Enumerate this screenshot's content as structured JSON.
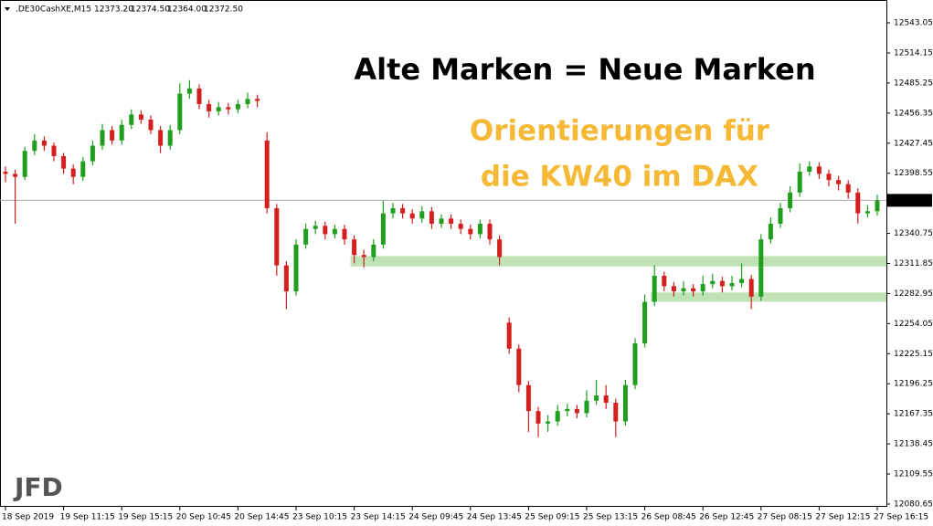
{
  "chart_data": {
    "type": "candlestick",
    "symbol": ".DE30CashXE,M15",
    "header_ohlc": [
      "12373.20",
      "12374.50",
      "12364.00",
      "12372.50"
    ],
    "annotations": [
      "Alte Marken = Neue Marken",
      "Orientierungen für",
      "die KW40 im DAX"
    ],
    "logo": "JFD",
    "bull_color": "#1f9e1f",
    "bear_color": "#d41f1f",
    "zone_color": "#bfe3b4",
    "ylim": [
      12078,
      12565
    ],
    "yticks": [
      {
        "value": 12543.05,
        "label": "12543.05"
      },
      {
        "value": 12514.15,
        "label": "12514.15"
      },
      {
        "value": 12485.25,
        "label": "12485.25"
      },
      {
        "value": 12456.35,
        "label": "12456.35"
      },
      {
        "value": 12427.45,
        "label": "12427.45"
      },
      {
        "value": 12398.55,
        "label": "12398.55"
      },
      {
        "value": 12340.75,
        "label": "12340.75"
      },
      {
        "value": 12311.85,
        "label": "12311.85"
      },
      {
        "value": 12282.95,
        "label": "12282.95"
      },
      {
        "value": 12254.05,
        "label": "12254.05"
      },
      {
        "value": 12225.15,
        "label": "12225.15"
      },
      {
        "value": 12196.25,
        "label": "12196.25"
      },
      {
        "value": 12167.35,
        "label": "12167.35"
      },
      {
        "value": 12138.45,
        "label": "12138.45"
      },
      {
        "value": 12109.55,
        "label": "12109.55"
      },
      {
        "value": 12080.65,
        "label": "12080.65"
      }
    ],
    "current_price": {
      "value": 12372.5,
      "label": "12372.50"
    },
    "zones": [
      {
        "from": 36,
        "to": 90,
        "low": 12309,
        "high": 12319
      },
      {
        "from": 67,
        "to": 90,
        "low": 12275,
        "high": 12284
      }
    ],
    "categories": [
      "18 Sep 2019",
      null,
      null,
      null,
      null,
      null,
      "19 Sep 11:15",
      null,
      null,
      null,
      null,
      null,
      "19 Sep 15:15",
      null,
      null,
      null,
      null,
      null,
      "20 Sep 10:45",
      null,
      null,
      null,
      null,
      null,
      "20 Sep 14:45",
      null,
      null,
      null,
      null,
      null,
      "23 Sep 10:15",
      null,
      null,
      null,
      null,
      null,
      "23 Sep 14:15",
      null,
      null,
      null,
      null,
      null,
      "24 Sep 09:45",
      null,
      null,
      null,
      null,
      null,
      "24 Sep 13:45",
      null,
      null,
      null,
      null,
      null,
      "25 Sep 09:15",
      null,
      null,
      null,
      null,
      null,
      "25 Sep 13:15",
      null,
      null,
      null,
      null,
      null,
      "26 Sep 08:45",
      null,
      null,
      null,
      null,
      null,
      "26 Sep 12:45",
      null,
      null,
      null,
      null,
      null,
      "27 Sep 08:15",
      null,
      null,
      null,
      null,
      null,
      "27 Sep 12:15",
      null,
      null,
      null,
      null,
      null,
      "27 Sep 16:15"
    ],
    "candles": [
      [
        12400,
        12405,
        12390,
        12398
      ],
      [
        12398,
        12402,
        12350,
        12395
      ],
      [
        12395,
        12424,
        12392,
        12420
      ],
      [
        12420,
        12436,
        12416,
        12430
      ],
      [
        12430,
        12434,
        12420,
        12425
      ],
      [
        12425,
        12428,
        12410,
        12415
      ],
      [
        12415,
        12418,
        12398,
        12403
      ],
      [
        12403,
        12407,
        12388,
        12395
      ],
      [
        12395,
        12414,
        12391,
        12410
      ],
      [
        12410,
        12430,
        12406,
        12425
      ],
      [
        12425,
        12446,
        12421,
        12440
      ],
      [
        12440,
        12444,
        12426,
        12430
      ],
      [
        12430,
        12450,
        12426,
        12445
      ],
      [
        12445,
        12460,
        12441,
        12455
      ],
      [
        12455,
        12459,
        12446,
        12450
      ],
      [
        12450,
        12454,
        12436,
        12440
      ],
      [
        12440,
        12444,
        12418,
        12425
      ],
      [
        12425,
        12445,
        12421,
        12440
      ],
      [
        12440,
        12485,
        12436,
        12475
      ],
      [
        12475,
        12488,
        12470,
        12480
      ],
      [
        12480,
        12484,
        12460,
        12465
      ],
      [
        12465,
        12469,
        12452,
        12458
      ],
      [
        12458,
        12467,
        12454,
        12462
      ],
      [
        12462,
        12466,
        12455,
        12460
      ],
      [
        12460,
        12469,
        12456,
        12465
      ],
      [
        12465,
        12476,
        12461,
        12470
      ],
      [
        12470,
        12474,
        12462,
        12468
      ],
      [
        12430,
        12438,
        12360,
        12365
      ],
      [
        12365,
        12369,
        12300,
        12310
      ],
      [
        12310,
        12314,
        12268,
        12285
      ],
      [
        12285,
        12335,
        12281,
        12330
      ],
      [
        12330,
        12350,
        12326,
        12345
      ],
      [
        12345,
        12353,
        12340,
        12348
      ],
      [
        12348,
        12352,
        12335,
        12340
      ],
      [
        12340,
        12349,
        12336,
        12345
      ],
      [
        12345,
        12349,
        12330,
        12335
      ],
      [
        12335,
        12339,
        12312,
        12320
      ],
      [
        12320,
        12325,
        12308,
        12318
      ],
      [
        12318,
        12335,
        12314,
        12330
      ],
      [
        12330,
        12372,
        12326,
        12360
      ],
      [
        12360,
        12370,
        12355,
        12365
      ],
      [
        12365,
        12369,
        12355,
        12360
      ],
      [
        12360,
        12364,
        12350,
        12355
      ],
      [
        12355,
        12367,
        12351,
        12362
      ],
      [
        12362,
        12366,
        12345,
        12350
      ],
      [
        12350,
        12359,
        12346,
        12355
      ],
      [
        12355,
        12359,
        12345,
        12350
      ],
      [
        12350,
        12354,
        12340,
        12345
      ],
      [
        12345,
        12349,
        12335,
        12340
      ],
      [
        12340,
        12354,
        12336,
        12350
      ],
      [
        12350,
        12354,
        12330,
        12335
      ],
      [
        12335,
        12339,
        12310,
        12318
      ],
      [
        12255,
        12260,
        12225,
        12230
      ],
      [
        12230,
        12234,
        12188,
        12195
      ],
      [
        12195,
        12199,
        12150,
        12170
      ],
      [
        12170,
        12174,
        12145,
        12158
      ],
      [
        12158,
        12166,
        12150,
        12160
      ],
      [
        12160,
        12176,
        12156,
        12170
      ],
      [
        12170,
        12177,
        12165,
        12172
      ],
      [
        12172,
        12176,
        12163,
        12168
      ],
      [
        12168,
        12190,
        12164,
        12180
      ],
      [
        12180,
        12200,
        12176,
        12185
      ],
      [
        12185,
        12195,
        12172,
        12178
      ],
      [
        12178,
        12182,
        12145,
        12160
      ],
      [
        12160,
        12200,
        12156,
        12195
      ],
      [
        12195,
        12240,
        12191,
        12235
      ],
      [
        12235,
        12282,
        12231,
        12275
      ],
      [
        12275,
        12310,
        12271,
        12300
      ],
      [
        12300,
        12304,
        12285,
        12290
      ],
      [
        12290,
        12294,
        12280,
        12285
      ],
      [
        12285,
        12295,
        12281,
        12288
      ],
      [
        12288,
        12292,
        12280,
        12285
      ],
      [
        12285,
        12300,
        12281,
        12292
      ],
      [
        12292,
        12302,
        12288,
        12295
      ],
      [
        12295,
        12299,
        12284,
        12290
      ],
      [
        12290,
        12300,
        12286,
        12293
      ],
      [
        12293,
        12312,
        12289,
        12297
      ],
      [
        12297,
        12301,
        12268,
        12280
      ],
      [
        12280,
        12340,
        12276,
        12335
      ],
      [
        12335,
        12356,
        12331,
        12350
      ],
      [
        12350,
        12370,
        12346,
        12365
      ],
      [
        12365,
        12386,
        12361,
        12380
      ],
      [
        12380,
        12408,
        12376,
        12400
      ],
      [
        12400,
        12410,
        12396,
        12405
      ],
      [
        12405,
        12409,
        12393,
        12398
      ],
      [
        12398,
        12402,
        12386,
        12392
      ],
      [
        12392,
        12396,
        12382,
        12388
      ],
      [
        12388,
        12392,
        12374,
        12380
      ],
      [
        12380,
        12384,
        12350,
        12360
      ],
      [
        12360,
        12368,
        12356,
        12362
      ],
      [
        12362,
        12378,
        12358,
        12372.5
      ]
    ]
  }
}
